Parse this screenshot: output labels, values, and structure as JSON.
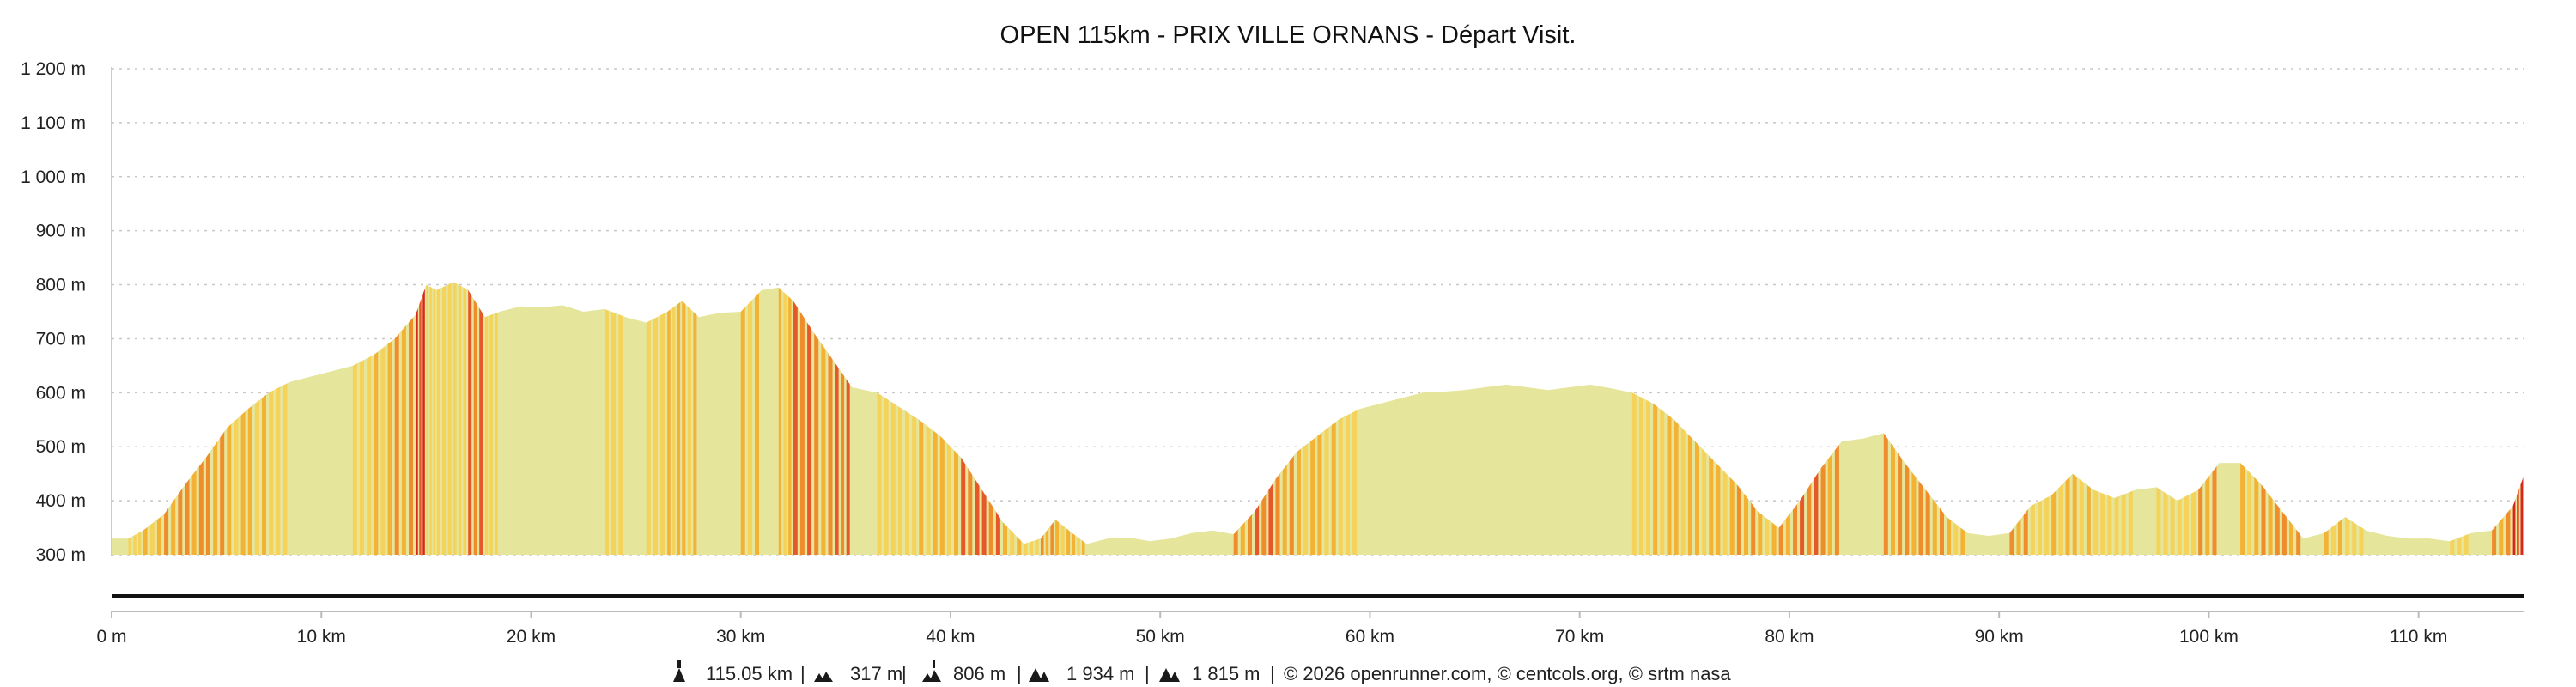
{
  "chart_data": {
    "type": "area",
    "title": "OPEN 115km - PRIX VILLE ORNANS - Départ Visit.",
    "xlabel": "",
    "ylabel": "",
    "xlim": [
      0,
      115.05
    ],
    "ylim": [
      300,
      1200
    ],
    "y_ticks": [
      300,
      400,
      500,
      600,
      700,
      800,
      900,
      1000,
      1100,
      1200
    ],
    "y_tick_labels": [
      "300 m",
      "400 m",
      "500 m",
      "600 m",
      "700 m",
      "800 m",
      "900 m",
      "1 000 m",
      "1 100 m",
      "1 200 m"
    ],
    "x_ticks": [
      0,
      10,
      20,
      30,
      40,
      50,
      60,
      70,
      80,
      90,
      100,
      110
    ],
    "x_tick_labels": [
      "0 m",
      "10 km",
      "20 km",
      "30 km",
      "40 km",
      "50 km",
      "60 km",
      "70 km",
      "80 km",
      "90 km",
      "100 km",
      "110 km"
    ],
    "grid": true,
    "legend": "none",
    "series": [
      {
        "x": [
          0,
          0.8,
          1.5,
          2.5,
          3.5,
          4.5,
          5.5,
          6.5,
          7.5,
          8.5,
          9.5,
          10.5,
          11.5,
          12.5,
          13.5,
          14.5,
          15.0,
          15.5,
          16.3,
          17.0,
          17.8,
          18.5,
          19.5,
          20.5,
          21.5,
          22.5,
          23.5,
          24.5,
          25.5,
          26.5,
          27.2,
          28.0,
          29.0,
          30.0,
          31.0,
          31.8,
          32.5,
          33.5,
          34.5,
          35.3,
          36.5,
          37.5,
          38.5,
          39.5,
          40.5,
          41.5,
          42.5,
          43.5,
          44.3,
          45.0,
          45.8,
          46.5,
          47.5,
          48.5,
          49.5,
          50.5,
          51.5,
          52.5,
          53.5,
          54.5,
          55.5,
          56.5,
          57.5,
          58.5,
          59.5,
          60.5,
          61.5,
          62.5,
          63.5,
          64.5,
          65.5,
          66.5,
          67.5,
          68.5,
          69.5,
          70.5,
          71.5,
          72.5,
          73.5,
          74.5,
          75.5,
          76.5,
          77.5,
          78.5,
          79.5,
          80.5,
          81.5,
          82.5,
          83.5,
          84.5,
          85.5,
          86.5,
          87.5,
          88.5,
          89.5,
          90.5,
          91.5,
          92.5,
          93.5,
          94.5,
          95.5,
          96.5,
          97.5,
          98.5,
          99.5,
          100.5,
          101.5,
          102.5,
          103.5,
          104.5,
          105.5,
          106.5,
          107.5,
          108.5,
          109.5,
          110.5,
          111.5,
          112.5,
          113.5,
          114.5,
          115.05
        ],
        "y": [
          330,
          330,
          345,
          375,
          430,
          480,
          535,
          570,
          600,
          620,
          630,
          640,
          650,
          670,
          700,
          745,
          800,
          790,
          805,
          790,
          740,
          750,
          760,
          758,
          762,
          750,
          755,
          740,
          730,
          750,
          770,
          740,
          748,
          750,
          790,
          795,
          770,
          710,
          655,
          610,
          600,
          575,
          550,
          520,
          480,
          420,
          360,
          320,
          330,
          365,
          340,
          320,
          330,
          332,
          325,
          330,
          340,
          345,
          338,
          380,
          440,
          490,
          520,
          550,
          570,
          580,
          590,
          600,
          602,
          605,
          610,
          615,
          610,
          605,
          610,
          615,
          608,
          600,
          580,
          550,
          510,
          470,
          430,
          380,
          350,
          400,
          460,
          510,
          515,
          525,
          470,
          420,
          370,
          340,
          335,
          340,
          390,
          410,
          450,
          420,
          405,
          420,
          425,
          400,
          420,
          470,
          470,
          430,
          380,
          330,
          340,
          370,
          345,
          335,
          330,
          330,
          325,
          340,
          345,
          390,
          450
        ]
      }
    ],
    "slope_band_colors": [
      "#e5e59c",
      "#f5d35a",
      "#f3b234",
      "#ef8c2c",
      "#e6572a",
      "#d8261d"
    ]
  },
  "footer": {
    "distance": "115.05 km",
    "min_altitude": "317 m",
    "max_altitude": "806 m",
    "elevation_gain": "1 934 m",
    "elevation_loss": "1 815 m",
    "credits": "© 2026 openrunner.com, © centcols.org, © srtm nasa"
  },
  "colors": {
    "axis": "#bbbbbb",
    "grid": "#c8c8c8",
    "baseline": "#111111",
    "text": "#222222"
  },
  "icons": [
    "distance-icon",
    "min-altitude-icon",
    "max-altitude-icon",
    "elevation-gain-icon",
    "elevation-loss-icon"
  ]
}
